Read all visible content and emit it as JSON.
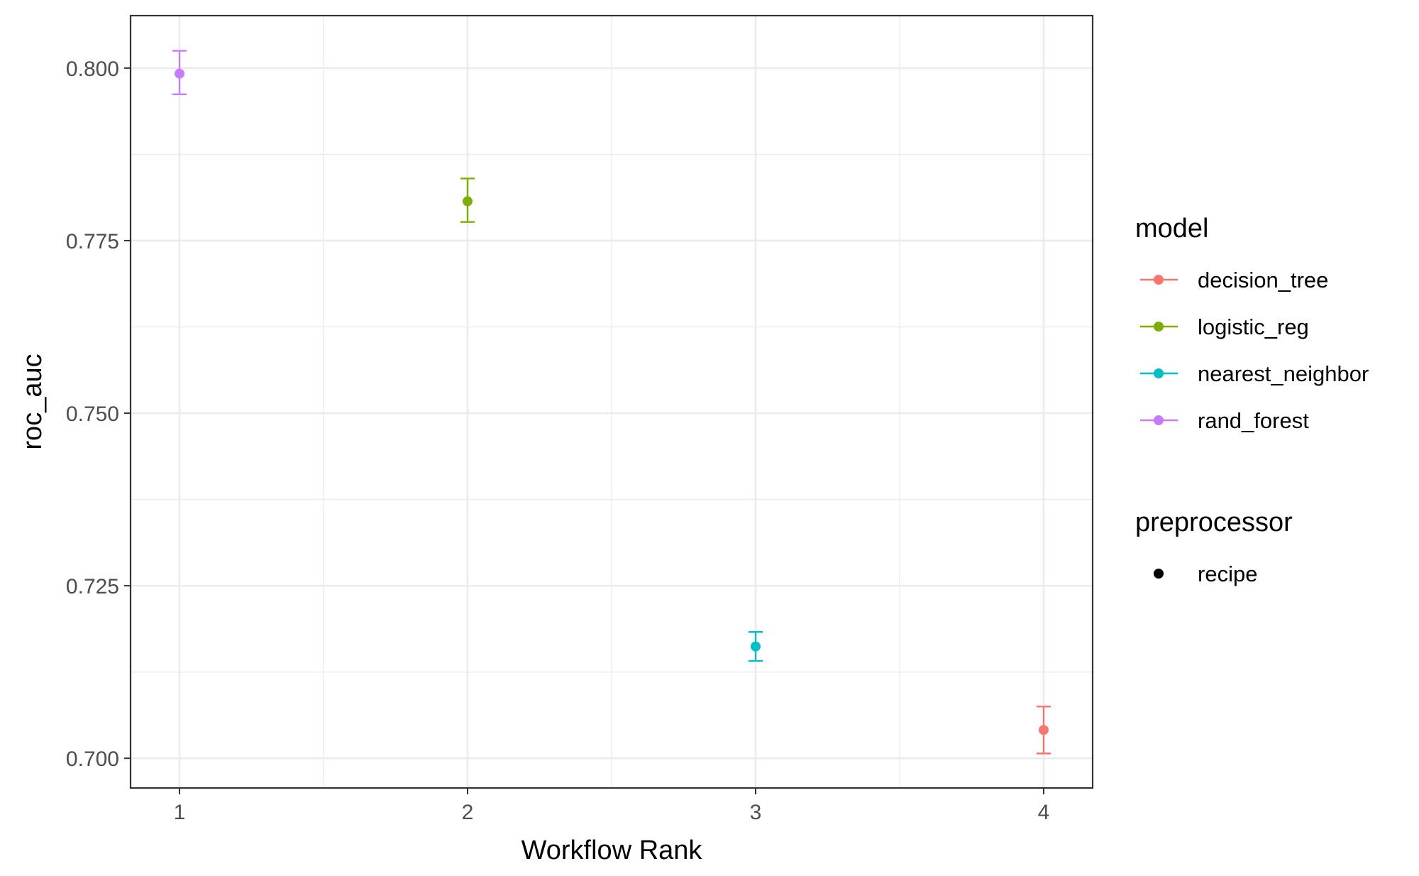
{
  "chart_data": {
    "type": "scatter",
    "xlabel": "Workflow Rank",
    "ylabel": "roc_auc",
    "x_ticks": [
      "1",
      "2",
      "3",
      "4"
    ],
    "y_ticks": [
      "0.700",
      "0.725",
      "0.750",
      "0.775",
      "0.800"
    ],
    "xlim": [
      0.83,
      4.17
    ],
    "ylim": [
      0.6957,
      0.8076
    ],
    "grid": true,
    "error_bars": true,
    "legend_placement": "right",
    "series": [
      {
        "name": "rand_forest",
        "color": "#C77CFF",
        "points": [
          {
            "x": 1,
            "y": 0.7992,
            "lower": 0.7962,
            "upper": 0.8025
          }
        ]
      },
      {
        "name": "logistic_reg",
        "color": "#7CAE00",
        "points": [
          {
            "x": 2,
            "y": 0.7807,
            "lower": 0.7777,
            "upper": 0.784
          }
        ]
      },
      {
        "name": "nearest_neighbor",
        "color": "#00BFC4",
        "points": [
          {
            "x": 3,
            "y": 0.7162,
            "lower": 0.7141,
            "upper": 0.7183
          }
        ]
      },
      {
        "name": "decision_tree",
        "color": "#F8766D",
        "points": [
          {
            "x": 4,
            "y": 0.7041,
            "lower": 0.7007,
            "upper": 0.7075
          }
        ]
      }
    ],
    "legend": {
      "model_title": "model",
      "model_items": [
        {
          "label": "decision_tree",
          "color": "#F8766D"
        },
        {
          "label": "logistic_reg",
          "color": "#7CAE00"
        },
        {
          "label": "nearest_neighbor",
          "color": "#00BFC4"
        },
        {
          "label": "rand_forest",
          "color": "#C77CFF"
        }
      ],
      "preprocessor_title": "preprocessor",
      "preprocessor_items": [
        {
          "label": "recipe",
          "color": "#000000"
        }
      ]
    }
  }
}
